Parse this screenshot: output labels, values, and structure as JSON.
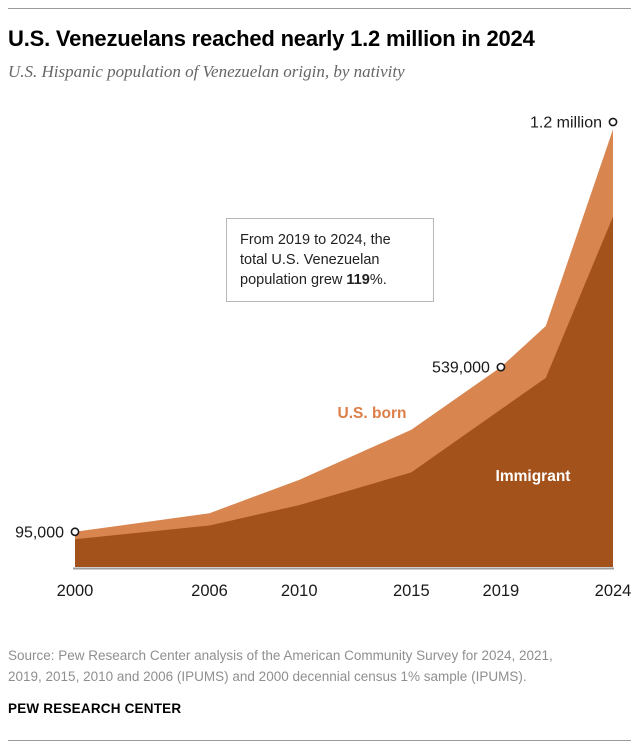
{
  "page": {
    "title": "U.S. Venezuelans reached nearly 1.2 million in 2024",
    "subtitle": "U.S. Hispanic population of Venezuelan origin, by nativity"
  },
  "callout": {
    "text_pre": "From 2019 to 2024, the total U.S. Venezuelan population grew ",
    "text_bold": "119",
    "text_post": "%."
  },
  "footer": {
    "source_lines": [
      "Source: Pew Research Center analysis of the American Community Survey for 2024, 2021,",
      "2019, 2015, 2010 and 2006 (IPUMS) and 2000 decennial census 1% sample (IPUMS)."
    ],
    "brand": "PEW RESEARCH CENTER"
  },
  "chart_data": {
    "type": "area",
    "stacked": true,
    "title": "U.S. Hispanic population of Venezuelan origin, by nativity",
    "x": [
      2000,
      2006,
      2010,
      2015,
      2019,
      2021,
      2024
    ],
    "series": [
      {
        "name": "Immigrant",
        "color": "#a4521c",
        "values": [
          75000,
          112000,
          167000,
          255000,
          425000,
          510000,
          945000
        ]
      },
      {
        "name": "U.S. born",
        "color": "#d8854f",
        "values": [
          20000,
          33000,
          68000,
          115000,
          114000,
          140000,
          235000
        ]
      }
    ],
    "totals": [
      95000,
      145000,
      235000,
      370000,
      539000,
      650000,
      1180000
    ],
    "x_ticks": [
      "2000",
      "2006",
      "2010",
      "2015",
      "2019",
      "2024"
    ],
    "ylim": [
      0,
      1200000
    ],
    "grid": false,
    "legend": "inline-labels",
    "annotations": [
      {
        "year": 2000,
        "value": 95000,
        "label": "95,000"
      },
      {
        "year": 2019,
        "value": 539000,
        "label": "539,000"
      },
      {
        "year": 2024,
        "value": 1200000,
        "label": "1.2 million"
      }
    ],
    "axis_line_color": "#9e9e9e",
    "marker_style": "open-circle"
  }
}
